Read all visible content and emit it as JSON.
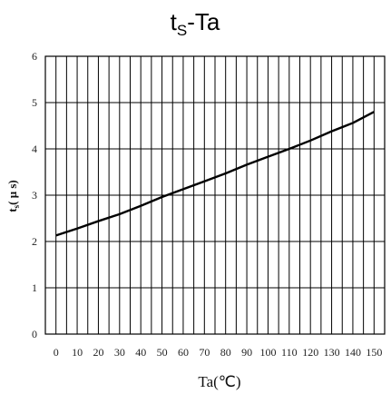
{
  "chart_data": {
    "type": "line",
    "title": {
      "main": "t",
      "sub": "S",
      "rest": "-Ta"
    },
    "xlabel": "Ta(℃)",
    "ylabel": {
      "main": "t",
      "sub": "s",
      "rest": "( μ s)"
    },
    "xlim": [
      -5,
      155
    ],
    "ylim": [
      0,
      6
    ],
    "xticks": [
      0,
      10,
      20,
      30,
      40,
      50,
      60,
      70,
      80,
      90,
      100,
      110,
      120,
      130,
      140,
      150
    ],
    "yticks": [
      0,
      1,
      2,
      3,
      4,
      5,
      6
    ],
    "grid": true,
    "series": [
      {
        "x": [
          0,
          10,
          20,
          30,
          40,
          50,
          60,
          70,
          80,
          90,
          100,
          110,
          120,
          130,
          140,
          150
        ],
        "y": [
          2.13,
          2.28,
          2.44,
          2.59,
          2.77,
          2.96,
          3.13,
          3.3,
          3.47,
          3.66,
          3.83,
          4.0,
          4.18,
          4.38,
          4.56,
          4.8
        ]
      }
    ],
    "colors": {
      "line": "#000000",
      "grid": "#000000",
      "axis": "#000000"
    }
  }
}
